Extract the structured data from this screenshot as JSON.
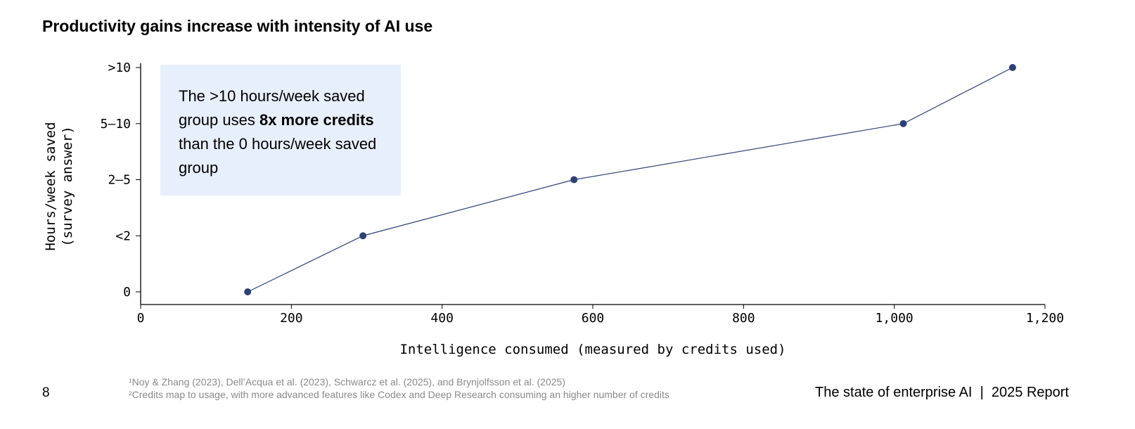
{
  "title": "Productivity gains increase with intensity of AI use",
  "callout": {
    "pre": "The >10 hours/week saved group uses ",
    "bold": "8x more credits",
    "post": " than the 0 hours/week saved group"
  },
  "footnotes": [
    "¹Noy & Zhang (2023), Dell’Acqua et al. (2023), Schwarcz et al. (2025), and Brynjolfsson et al. (2025)",
    "²Credits map to usage, with more advanced features like Codex and Deep Research consuming an higher number of credits"
  ],
  "page_number": "8",
  "report_label": "The state of enterprise AI  |  2025 Report",
  "chart_data": {
    "type": "line",
    "xlabel": "Intelligence consumed (measured by credits used)",
    "ylabel": [
      "Hours/week saved",
      "(survey answer)"
    ],
    "xlim": [
      0,
      1200
    ],
    "xticks": [
      0,
      200,
      400,
      600,
      800,
      1000,
      1200
    ],
    "xtick_labels": [
      "0",
      "200",
      "400",
      "600",
      "800",
      "1,000",
      "1,200"
    ],
    "y_categories": [
      "0",
      "<2",
      "2–5",
      "5–10",
      ">10"
    ],
    "points": [
      {
        "x": 142,
        "y": "0"
      },
      {
        "x": 295,
        "y": "<2"
      },
      {
        "x": 575,
        "y": "2–5"
      },
      {
        "x": 1012,
        "y": "5–10"
      },
      {
        "x": 1157,
        "y": ">10"
      }
    ],
    "line_color": "#2d4177",
    "grid": false
  }
}
